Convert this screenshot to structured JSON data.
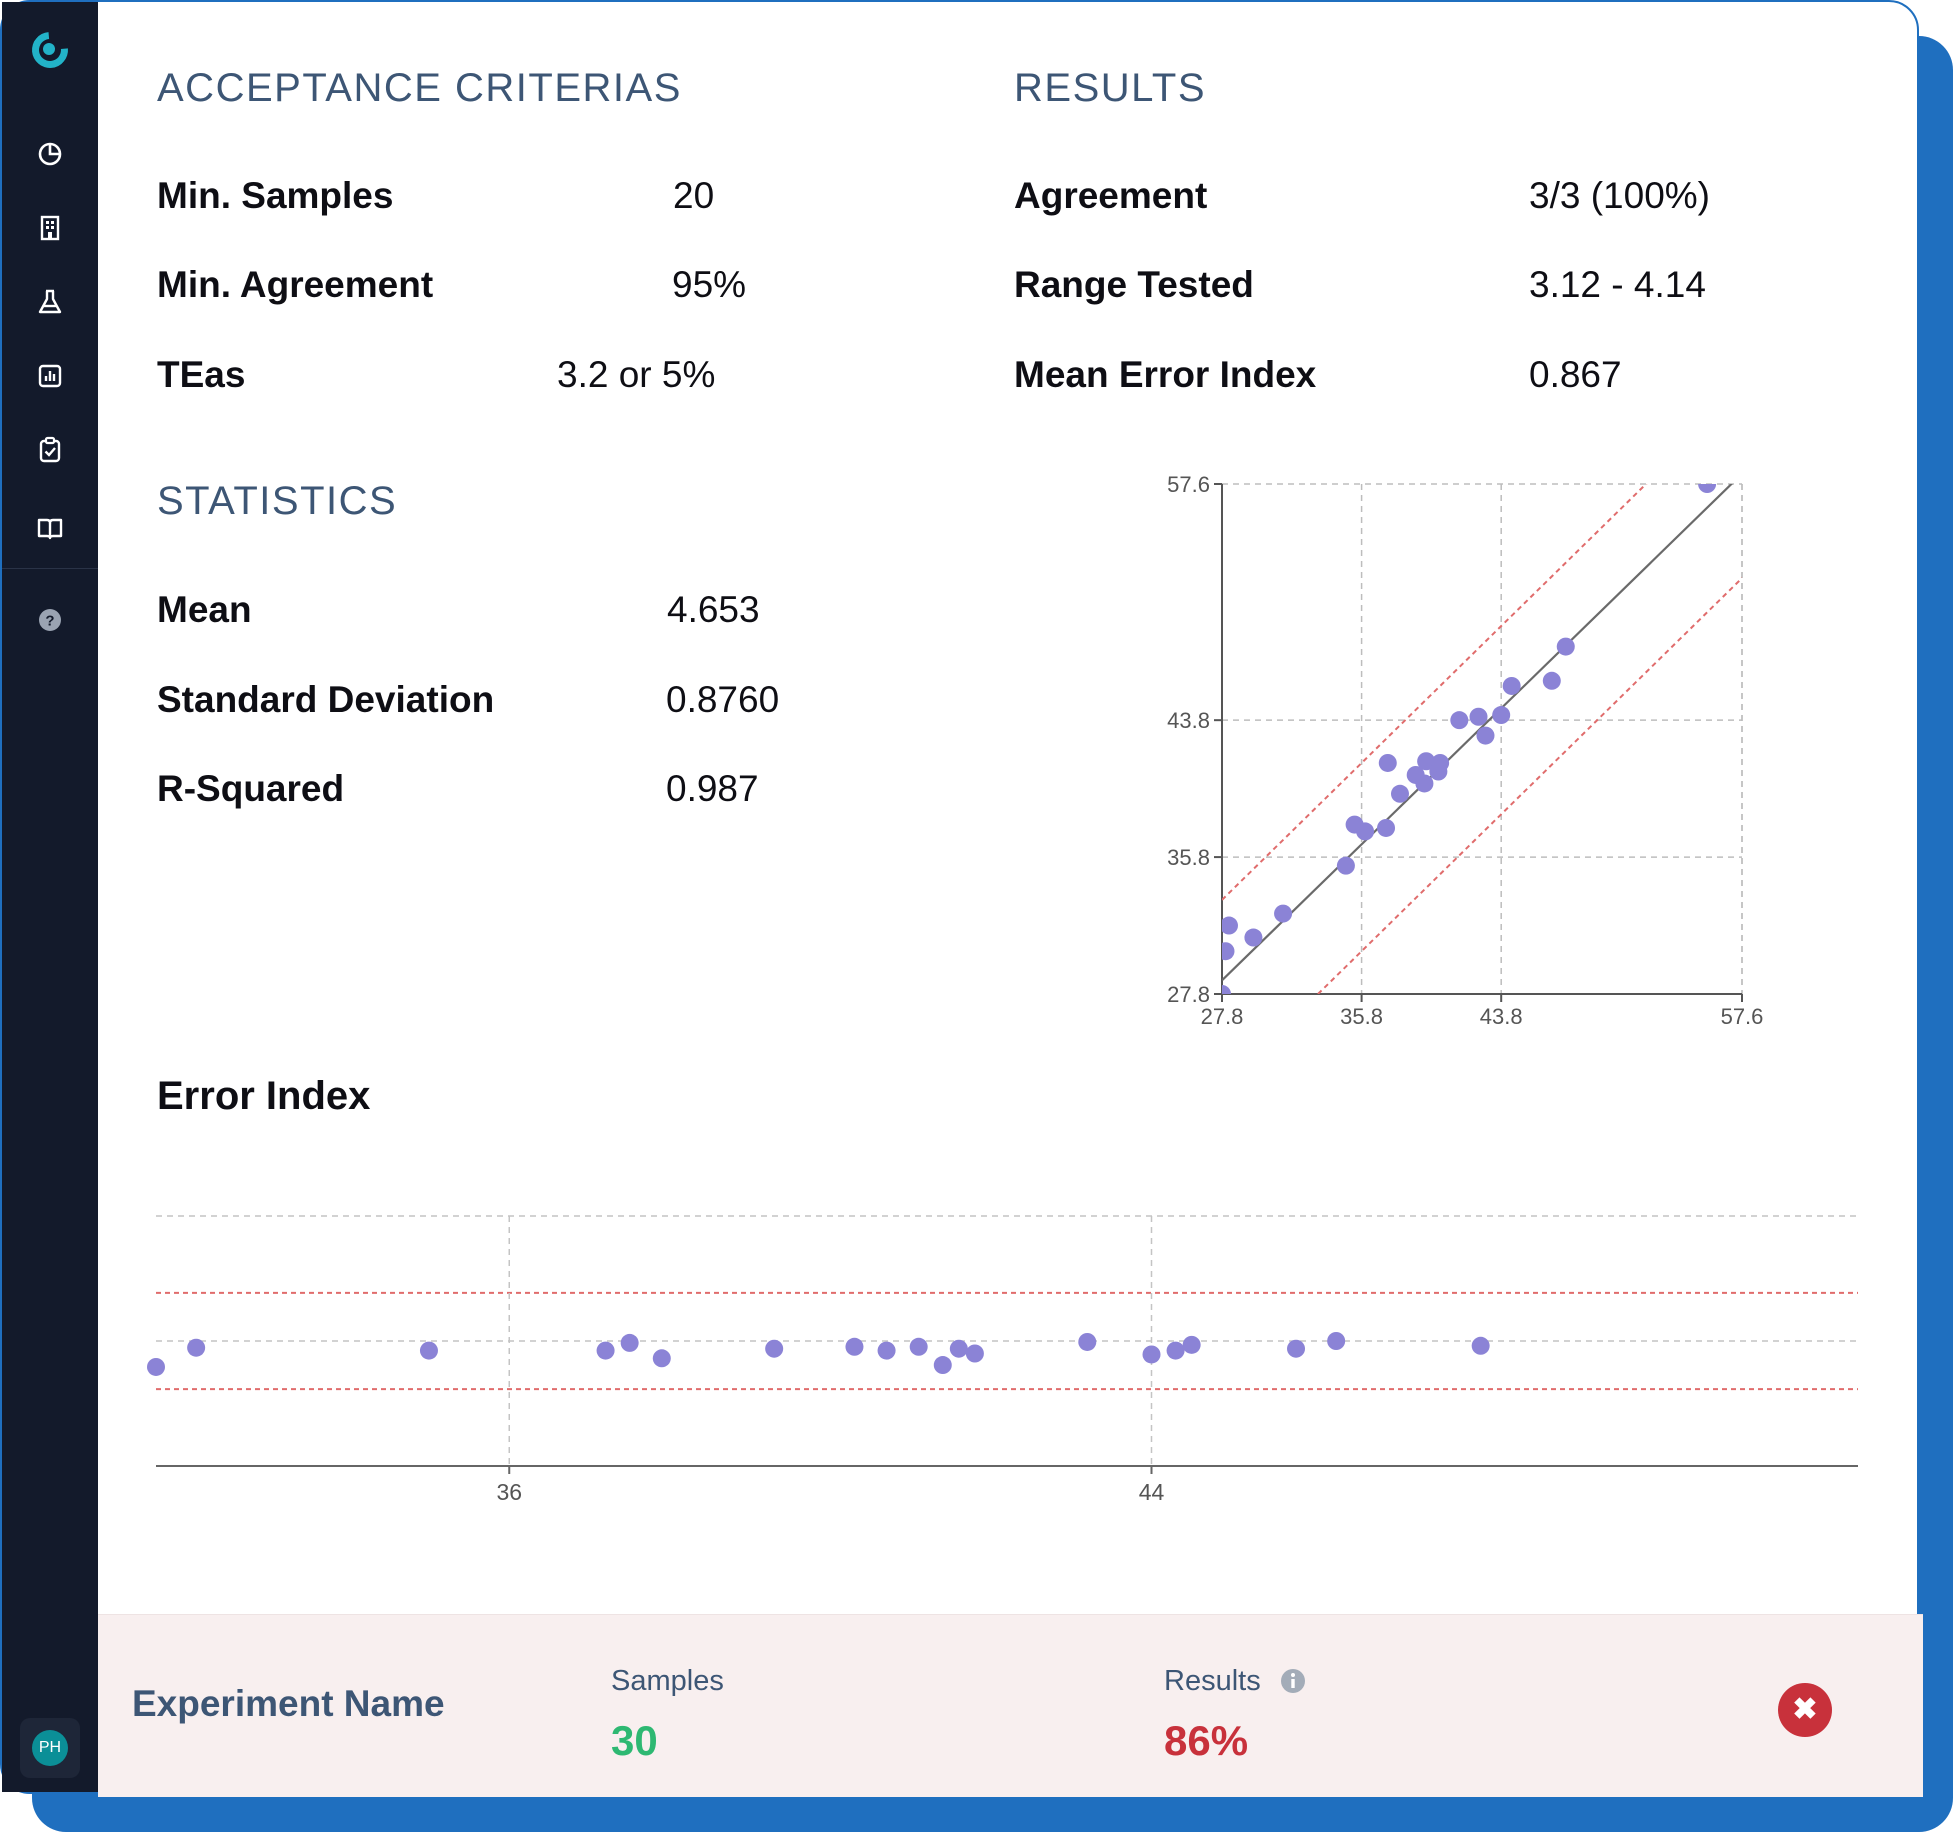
{
  "acceptance": {
    "title": "ACCEPTANCE CRITERIAS",
    "rows": [
      {
        "label": "Min. Samples",
        "value": "20"
      },
      {
        "label": "Min. Agreement",
        "value": "95%"
      },
      {
        "label": "TEas",
        "value": "3.2 or 5%"
      }
    ]
  },
  "results": {
    "title": "RESULTS",
    "rows": [
      {
        "label": "Agreement",
        "value": "3/3 (100%)"
      },
      {
        "label": "Range Tested",
        "value": "3.12 - 4.14"
      },
      {
        "label": "Mean Error Index",
        "value": "0.867"
      }
    ]
  },
  "statistics": {
    "title": "STATISTICS",
    "rows": [
      {
        "label": "Mean",
        "value": "4.653"
      },
      {
        "label": "Standard Deviation",
        "value": "0.8760"
      },
      {
        "label": "R-Squared",
        "value": "0.987"
      }
    ]
  },
  "error_index": {
    "title": "Error Index"
  },
  "footer": {
    "experiment_name": "Experiment Name",
    "samples_label": "Samples",
    "samples_value": "30",
    "results_label": "Results",
    "results_value": "86%",
    "info_icon": "info-icon",
    "close_icon": "close-icon"
  },
  "user": {
    "initials": "PH"
  },
  "sidebar": {
    "icons": [
      "dashboard-icon",
      "building-icon",
      "flask-icon",
      "report-icon",
      "clipboard-check-icon",
      "book-icon",
      "help-icon"
    ]
  },
  "colors": {
    "point": "#8b83d6",
    "limit": "#e06c6c",
    "accent": "#1f6fbf",
    "success": "#2eb872",
    "danger": "#c8313b"
  },
  "chart_data": [
    {
      "type": "scatter",
      "title": "",
      "xlabel": "",
      "ylabel": "",
      "xlim": [
        27.8,
        57.6
      ],
      "ylim": [
        27.8,
        57.6
      ],
      "x_ticks": [
        "27.8",
        "35.8",
        "43.8",
        "57.6"
      ],
      "y_ticks": [
        "57.6",
        "43.8",
        "35.8",
        "27.8"
      ],
      "grid": "dashed",
      "points": [
        {
          "x": 27.8,
          "y": 27.8
        },
        {
          "x": 28.0,
          "y": 30.3
        },
        {
          "x": 28.2,
          "y": 31.8
        },
        {
          "x": 29.6,
          "y": 31.1
        },
        {
          "x": 31.3,
          "y": 32.5
        },
        {
          "x": 34.9,
          "y": 35.3
        },
        {
          "x": 35.4,
          "y": 37.7
        },
        {
          "x": 36.0,
          "y": 37.3
        },
        {
          "x": 37.2,
          "y": 37.5
        },
        {
          "x": 37.3,
          "y": 41.3
        },
        {
          "x": 38.0,
          "y": 39.5
        },
        {
          "x": 38.9,
          "y": 40.6
        },
        {
          "x": 39.4,
          "y": 40.1
        },
        {
          "x": 39.5,
          "y": 41.4
        },
        {
          "x": 40.2,
          "y": 40.8
        },
        {
          "x": 40.3,
          "y": 41.3
        },
        {
          "x": 41.4,
          "y": 43.8
        },
        {
          "x": 42.5,
          "y": 44.0
        },
        {
          "x": 42.9,
          "y": 42.9
        },
        {
          "x": 43.8,
          "y": 44.1
        },
        {
          "x": 44.4,
          "y": 45.8
        },
        {
          "x": 46.7,
          "y": 46.1
        },
        {
          "x": 47.5,
          "y": 48.1
        },
        {
          "x": 55.6,
          "y": 57.6
        }
      ],
      "identity_line": true,
      "limit_lines": "dashed red"
    },
    {
      "type": "scatter",
      "title": "Error Index",
      "xlabel": "",
      "ylabel": "",
      "xlim": [
        31.6,
        52.8
      ],
      "ylim": [
        -1.3,
        1.3
      ],
      "x_ticks": [
        "36",
        "44"
      ],
      "grid": "dashed",
      "limit_lines": [
        -0.5,
        0.5
      ],
      "points": [
        {
          "x": 31.6,
          "y": -0.27
        },
        {
          "x": 32.1,
          "y": -0.07
        },
        {
          "x": 35.0,
          "y": -0.1
        },
        {
          "x": 37.2,
          "y": -0.1
        },
        {
          "x": 37.5,
          "y": -0.02
        },
        {
          "x": 37.9,
          "y": -0.18
        },
        {
          "x": 39.3,
          "y": -0.08
        },
        {
          "x": 40.3,
          "y": -0.06
        },
        {
          "x": 40.7,
          "y": -0.1
        },
        {
          "x": 41.1,
          "y": -0.06
        },
        {
          "x": 41.4,
          "y": -0.25
        },
        {
          "x": 41.6,
          "y": -0.08
        },
        {
          "x": 41.8,
          "y": -0.13
        },
        {
          "x": 43.2,
          "y": -0.01
        },
        {
          "x": 44.0,
          "y": -0.14
        },
        {
          "x": 44.3,
          "y": -0.1
        },
        {
          "x": 44.5,
          "y": -0.04
        },
        {
          "x": 45.8,
          "y": -0.08
        },
        {
          "x": 46.3,
          "y": 0.0
        },
        {
          "x": 48.1,
          "y": -0.05
        }
      ]
    }
  ]
}
